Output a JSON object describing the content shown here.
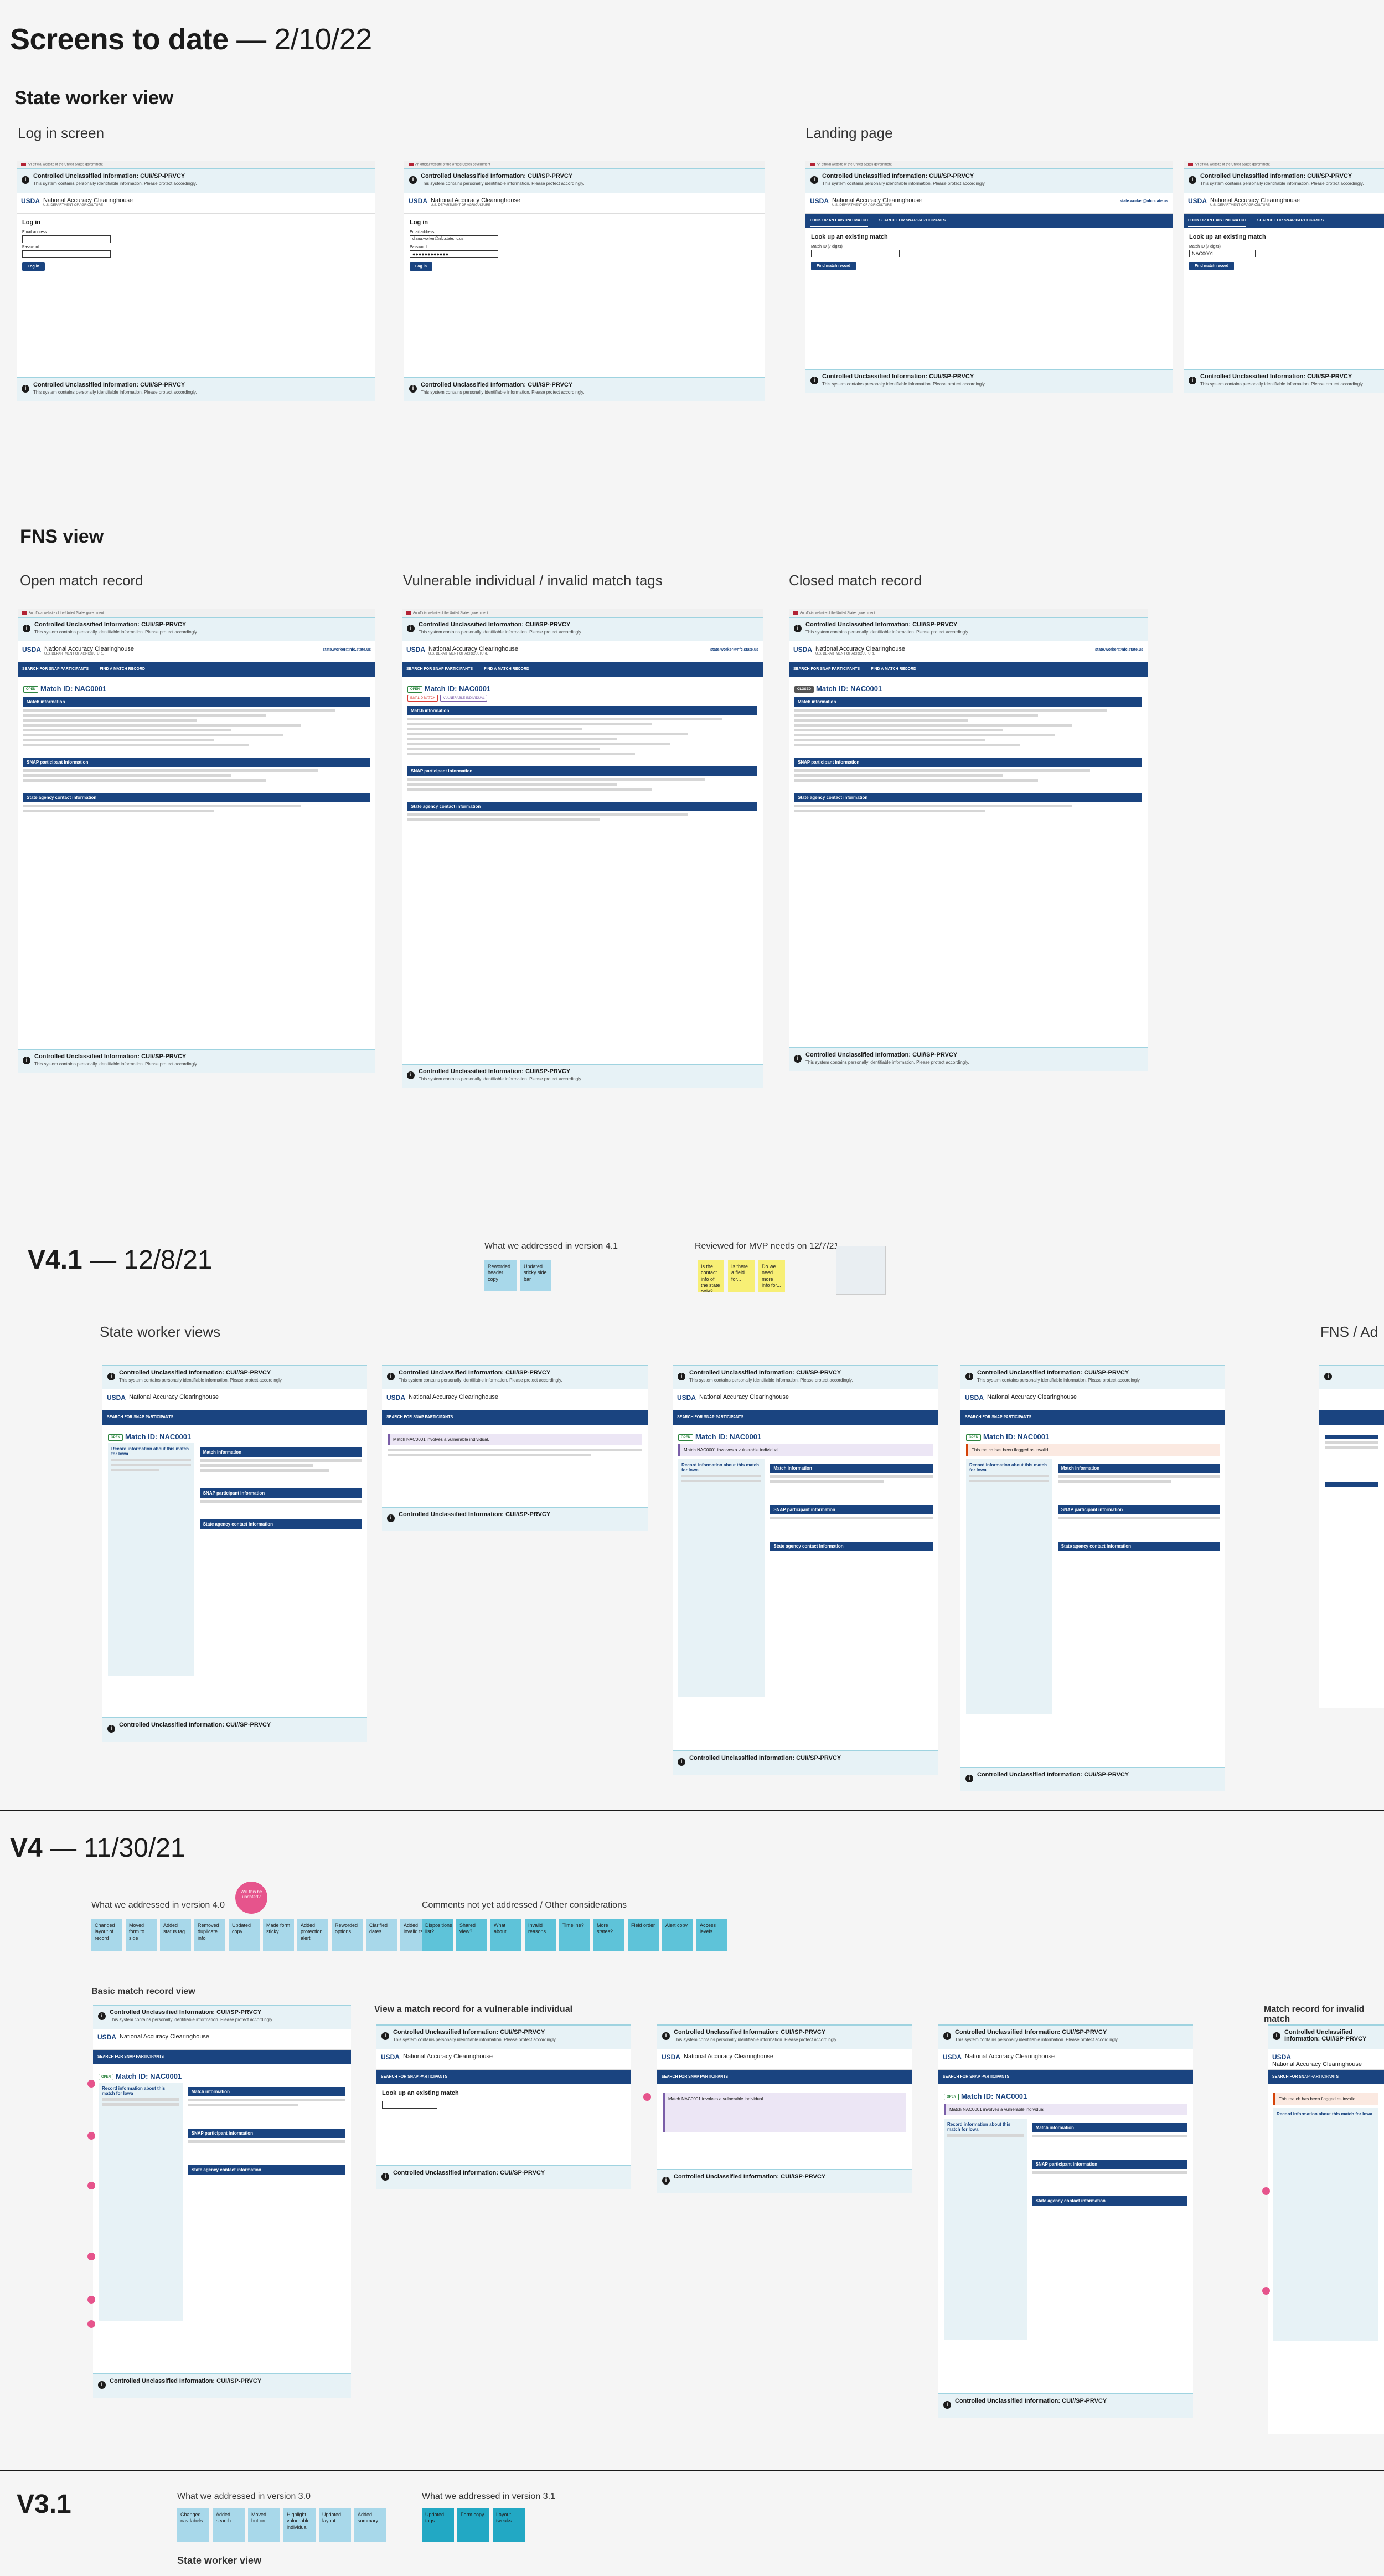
{
  "page": {
    "title": "Screens to date",
    "title_date": "— 2/10/22"
  },
  "section1": {
    "title": "State worker view",
    "login_label": "Log in screen",
    "landing_label": "Landing page"
  },
  "section2": {
    "title": "FNS view",
    "open_label": "Open match record",
    "vulnerable_label": "Vulnerable individual / invalid match tags",
    "closed_label": "Closed match record"
  },
  "v41": {
    "title": "V4.1",
    "date": "— 12/8/21",
    "addressed_label": "What we addressed in version 4.1",
    "reviewed_label": "Reviewed for MVP needs on 12/7/21",
    "state_worker_label": "State worker views",
    "fns_label": "FNS / Ad",
    "yellow_notes": [
      "Is the contact info of the state only?",
      "Is there a field for...",
      "Do we need more info for..."
    ],
    "blue_notes": [
      "Reworded header copy",
      "Updated sticky side bar"
    ]
  },
  "v4": {
    "title": "V4",
    "date": "— 11/30/21",
    "addressed_label": "What we addressed in version 4.0",
    "comments_label": "Comments not yet addressed / Other considerations",
    "basic_label": "Basic match record view",
    "vulnerable_label": "View a match record for a vulnerable individual",
    "invalid_label": "Match record for invalid match",
    "addressed_notes": [
      "Changed layout of record",
      "Moved form to side",
      "Added status tag",
      "Removed duplicate info",
      "Updated copy",
      "Made form sticky",
      "Added protection alert",
      "Reworded options",
      "Clarified dates",
      "Added invalid tag"
    ],
    "pink_note": "Will this be updated?",
    "comment_notes": [
      "Dispositions list?",
      "Shared view?",
      "What about...",
      "Invalid reasons",
      "Timeline?",
      "More states?",
      "Field order",
      "Alert copy",
      "Access levels"
    ]
  },
  "v31": {
    "title": "V3.1",
    "addressed30_label": "What we addressed in version 3.0",
    "addressed31_label": "What we addressed in version 3.1",
    "state_worker_label": "State worker view",
    "notes30": [
      "Changed nav labels",
      "Added search",
      "Moved button",
      "Highlight vulnerable individual",
      "Updated layout",
      "Added summary"
    ],
    "notes31": [
      "Updated tags",
      "Form copy",
      "Layout tweaks"
    ]
  },
  "mock": {
    "gov_banner": "An official website of the United States government",
    "cui_title": "Controlled Unclassified Information: CUI//SP-PRVCY",
    "cui_sub": "This system contains personally identifiable information. Please protect accordingly.",
    "usda": "USDA",
    "app_name": "National Accuracy Clearinghouse",
    "dept": "U.S. DEPARTMENT OF AGRICULTURE",
    "email": "state.worker@nfc.state.us",
    "nav_lookup": "LOOK UP AN EXISTING MATCH",
    "nav_search": "SEARCH FOR SNAP PARTICIPANTS",
    "nav_find": "FIND A MATCH RECORD",
    "login_heading": "Log in",
    "email_label": "Email address",
    "password_label": "Password",
    "email_value": "diana.worker@nfc.state.nc.us",
    "password_value": "●●●●●●●●●●●●",
    "login_btn": "Log in",
    "lookup_heading": "Look up an existing match",
    "lookup_label": "Match ID (7 digits)",
    "lookup_value": "NAC0001",
    "lookup_btn": "Find match record",
    "match_id": "Match ID: NAC0001",
    "tag_open": "OPEN",
    "tag_closed": "CLOSED",
    "tag_invalid": "INVALID MATCH",
    "tag_vulnerable": "VULNERABLE INDIVIDUAL",
    "acc_match": "Match information",
    "acc_snap": "SNAP participant information",
    "acc_state": "State agency contact information",
    "side_heading": "Record information about this match for Iowa",
    "alert_vulnerable": "Match NAC0001 involves a vulnerable individual.",
    "alert_invalid": "This match has been flagged as invalid"
  }
}
